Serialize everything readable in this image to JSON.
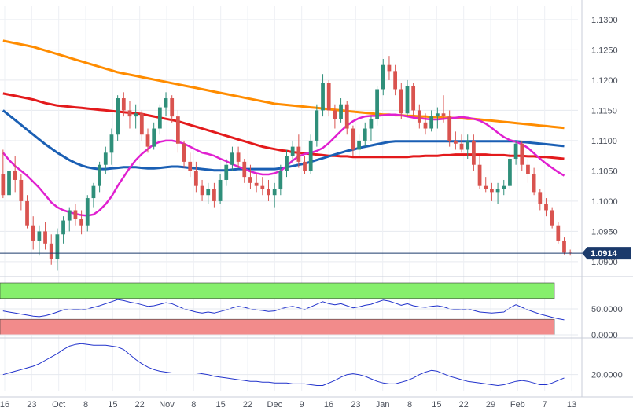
{
  "chart_data": [
    {
      "panel": "price",
      "type": "candlestick",
      "y_ticks": [
        "1.1300",
        "1.1250",
        "1.1200",
        "1.1150",
        "1.1100",
        "1.1050",
        "1.1000",
        "1.0950",
        "1.0900"
      ],
      "ylim": [
        1.0883,
        1.1322
      ],
      "last_price": {
        "value": 1.0914,
        "label": "1.0914",
        "color": "#1b3a6b"
      },
      "colors": {
        "up": "#2f8f7a",
        "down": "#d9534f",
        "sma20": "#e020d0",
        "sma50": "#1a5fb4",
        "sma100": "#e31a1c",
        "sma200": "#ff8c00",
        "grid": "#e6e9ef"
      },
      "candles": [
        [
          1.1045,
          1.1085,
          1.1005,
          1.101
        ],
        [
          1.101,
          1.106,
          1.0975,
          1.105
        ],
        [
          1.105,
          1.1075,
          1.1015,
          1.1035
        ],
        [
          1.1035,
          1.1045,
          1.0985,
          1.1
        ],
        [
          1.1,
          1.101,
          1.0955,
          1.096
        ],
        [
          1.096,
          1.0975,
          1.092,
          1.0935
        ],
        [
          1.0935,
          1.096,
          1.091,
          1.095
        ],
        [
          1.095,
          1.0965,
          1.092,
          1.093
        ],
        [
          1.093,
          1.0945,
          1.0895,
          1.0905
        ],
        [
          1.0905,
          1.0955,
          1.0885,
          1.0945
        ],
        [
          1.0945,
          1.0975,
          1.093,
          1.0968
        ],
        [
          1.0968,
          1.099,
          1.095,
          1.0985
        ],
        [
          1.0985,
          1.0995,
          1.096,
          1.097
        ],
        [
          1.097,
          1.0985,
          1.0945,
          1.096
        ],
        [
          1.096,
          1.101,
          1.095,
          1.1005
        ],
        [
          1.1005,
          1.103,
          1.099,
          1.1025
        ],
        [
          1.1025,
          1.1065,
          1.1015,
          1.106
        ],
        [
          1.106,
          1.109,
          1.1045,
          1.108
        ],
        [
          1.108,
          1.112,
          1.106,
          1.111
        ],
        [
          1.111,
          1.1175,
          1.11,
          1.117
        ],
        [
          1.117,
          1.118,
          1.114,
          1.115
        ],
        [
          1.115,
          1.1165,
          1.112,
          1.114
        ],
        [
          1.114,
          1.116,
          1.112,
          1.1145
        ],
        [
          1.1145,
          1.115,
          1.11,
          1.111
        ],
        [
          1.111,
          1.112,
          1.108,
          1.109
        ],
        [
          1.109,
          1.113,
          1.1085,
          1.112
        ],
        [
          1.112,
          1.116,
          1.111,
          1.1155
        ],
        [
          1.1155,
          1.118,
          1.114,
          1.117
        ],
        [
          1.117,
          1.1175,
          1.113,
          1.114
        ],
        [
          1.114,
          1.115,
          1.108,
          1.1095
        ],
        [
          1.1095,
          1.11,
          1.1055,
          1.1065
        ],
        [
          1.1065,
          1.108,
          1.104,
          1.105
        ],
        [
          1.105,
          1.1065,
          1.1015,
          1.1025
        ],
        [
          1.1025,
          1.1035,
          1.1,
          1.101
        ],
        [
          1.101,
          1.103,
          1.0995,
          1.102
        ],
        [
          1.102,
          1.103,
          1.099,
          1.1
        ],
        [
          1.1,
          1.1045,
          1.0995,
          1.1035
        ],
        [
          1.1035,
          1.107,
          1.1025,
          1.106
        ],
        [
          1.106,
          1.109,
          1.105,
          1.108
        ],
        [
          1.108,
          1.109,
          1.1055,
          1.1065
        ],
        [
          1.1065,
          1.107,
          1.103,
          1.104
        ],
        [
          1.104,
          1.106,
          1.102,
          1.103
        ],
        [
          1.103,
          1.1045,
          1.1015,
          1.1025
        ],
        [
          1.1025,
          1.104,
          1.101,
          1.102
        ],
        [
          1.102,
          1.1035,
          1.1,
          1.101
        ],
        [
          1.101,
          1.103,
          1.099,
          1.102
        ],
        [
          1.102,
          1.106,
          1.101,
          1.105
        ],
        [
          1.105,
          1.1085,
          1.104,
          1.1075
        ],
        [
          1.1075,
          1.11,
          1.1065,
          1.109
        ],
        [
          1.109,
          1.111,
          1.1055,
          1.1065
        ],
        [
          1.1065,
          1.1075,
          1.1045,
          1.105
        ],
        [
          1.105,
          1.111,
          1.1045,
          1.11
        ],
        [
          1.11,
          1.116,
          1.109,
          1.115
        ],
        [
          1.115,
          1.121,
          1.114,
          1.1195
        ],
        [
          1.1195,
          1.12,
          1.114,
          1.115
        ],
        [
          1.115,
          1.116,
          1.112,
          1.1135
        ],
        [
          1.1135,
          1.117,
          1.113,
          1.116
        ],
        [
          1.116,
          1.1165,
          1.111,
          1.112
        ],
        [
          1.112,
          1.1125,
          1.1075,
          1.1085
        ],
        [
          1.1085,
          1.111,
          1.1075,
          1.11
        ],
        [
          1.11,
          1.113,
          1.109,
          1.112
        ],
        [
          1.112,
          1.114,
          1.11,
          1.1135
        ],
        [
          1.1135,
          1.119,
          1.1125,
          1.1185
        ],
        [
          1.1185,
          1.1235,
          1.1175,
          1.1225
        ],
        [
          1.1225,
          1.124,
          1.12,
          1.1215
        ],
        [
          1.1215,
          1.1225,
          1.1175,
          1.1185
        ],
        [
          1.1185,
          1.1195,
          1.1135,
          1.1145
        ],
        [
          1.1145,
          1.12,
          1.114,
          1.119
        ],
        [
          1.119,
          1.1195,
          1.114,
          1.115
        ],
        [
          1.115,
          1.116,
          1.112,
          1.113
        ],
        [
          1.113,
          1.1145,
          1.111,
          1.112
        ],
        [
          1.112,
          1.115,
          1.1115,
          1.114
        ],
        [
          1.114,
          1.1155,
          1.112,
          1.1145
        ],
        [
          1.1145,
          1.1175,
          1.113,
          1.114
        ],
        [
          1.114,
          1.115,
          1.109,
          1.11
        ],
        [
          1.11,
          1.1115,
          1.1085,
          1.1095
        ],
        [
          1.1095,
          1.111,
          1.108,
          1.1085
        ],
        [
          1.1085,
          1.111,
          1.107,
          1.11
        ],
        [
          1.11,
          1.111,
          1.105,
          1.106
        ],
        [
          1.106,
          1.1075,
          1.102,
          1.1025
        ],
        [
          1.1025,
          1.104,
          1.1015,
          1.102
        ],
        [
          1.102,
          1.103,
          1.1,
          1.1015
        ],
        [
          1.1015,
          1.103,
          1.0995,
          1.102
        ],
        [
          1.102,
          1.1035,
          1.101,
          1.1025
        ],
        [
          1.1025,
          1.108,
          1.102,
          1.107
        ],
        [
          1.107,
          1.11,
          1.106,
          1.1095
        ],
        [
          1.1095,
          1.11,
          1.105,
          1.106
        ],
        [
          1.106,
          1.107,
          1.103,
          1.1045
        ],
        [
          1.1045,
          1.1055,
          1.101,
          1.1015
        ],
        [
          1.1015,
          1.102,
          1.0985,
          1.0995
        ],
        [
          1.0995,
          1.1005,
          1.0975,
          1.0985
        ],
        [
          1.0985,
          1.099,
          1.0955,
          1.096
        ],
        [
          1.096,
          1.0965,
          1.093,
          1.0935
        ],
        [
          1.0935,
          1.094,
          1.0912,
          1.0915
        ],
        [
          1.0915,
          1.092,
          1.091,
          1.0914
        ]
      ],
      "sma20": [
        1.108,
        1.1068,
        1.1058,
        1.105,
        1.1042,
        1.1032,
        1.1022,
        1.101,
        1.0998,
        1.099,
        1.0985,
        1.0982,
        1.0979,
        1.0977,
        1.0976,
        1.0978,
        1.0985,
        1.0995,
        1.1008,
        1.1025,
        1.104,
        1.1055,
        1.1068,
        1.1078,
        1.1086,
        1.1094,
        1.1098,
        1.11,
        1.11,
        1.1098,
        1.1095,
        1.109,
        1.1085,
        1.108,
        1.1078,
        1.1075,
        1.107,
        1.1066,
        1.1061,
        1.1057,
        1.1053,
        1.1049,
        1.1046,
        1.1044,
        1.1044,
        1.1046,
        1.105,
        1.1058,
        1.1067,
        1.1074,
        1.1078,
        1.108,
        1.1083,
        1.1088,
        1.1096,
        1.1106,
        1.1116,
        1.1125,
        1.1132,
        1.1137,
        1.114,
        1.1141,
        1.1141,
        1.1142,
        1.1143,
        1.1143,
        1.1142,
        1.114,
        1.1138,
        1.1137,
        1.1136,
        1.1135,
        1.1135,
        1.1136,
        1.1137,
        1.1138,
        1.1139,
        1.1138,
        1.1136,
        1.1133,
        1.1128,
        1.1121,
        1.1113,
        1.1106,
        1.1101,
        1.1098,
        1.1094,
        1.1088,
        1.1079,
        1.107,
        1.1062,
        1.1055,
        1.1048,
        1.1042
      ],
      "sma50": [
        1.115,
        1.1142,
        1.1134,
        1.1126,
        1.1118,
        1.111,
        1.1102,
        1.1094,
        1.1087,
        1.108,
        1.1074,
        1.1068,
        1.1063,
        1.1059,
        1.1056,
        1.1054,
        1.1053,
        1.1053,
        1.1054,
        1.1055,
        1.1056,
        1.1056,
        1.1056,
        1.1055,
        1.1054,
        1.1054,
        1.1055,
        1.1056,
        1.1057,
        1.1057,
        1.1056,
        1.1055,
        1.1054,
        1.1053,
        1.1052,
        1.1051,
        1.1051,
        1.1051,
        1.1052,
        1.1053,
        1.1053,
        1.1053,
        1.1053,
        1.1053,
        1.1053,
        1.1053,
        1.1054,
        1.1056,
        1.1058,
        1.106,
        1.1062,
        1.1065,
        1.1068,
        1.1071,
        1.1074,
        1.1077,
        1.108,
        1.1083,
        1.1085,
        1.1088,
        1.109,
        1.1092,
        1.1094,
        1.1096,
        1.1098,
        1.1099,
        1.1099,
        1.1099,
        1.1099,
        1.1099,
        1.1099,
        1.1099,
        1.1099,
        1.1099,
        1.1099,
        1.1099,
        1.1099,
        1.1099,
        1.1099,
        1.1099,
        1.1099,
        1.1099,
        1.1099,
        1.1099,
        1.1099,
        1.1099,
        1.1098,
        1.1097,
        1.1096,
        1.1095,
        1.1094,
        1.1093,
        1.1092,
        1.1091
      ],
      "sma100": [
        1.1178,
        1.1176,
        1.1174,
        1.1172,
        1.117,
        1.1168,
        1.1165,
        1.1162,
        1.116,
        1.1158,
        1.1157,
        1.1156,
        1.1155,
        1.1154,
        1.1153,
        1.1152,
        1.1151,
        1.115,
        1.1149,
        1.1148,
        1.1147,
        1.1146,
        1.1145,
        1.1144,
        1.1142,
        1.114,
        1.1138,
        1.1136,
        1.1134,
        1.1132,
        1.1129,
        1.1126,
        1.1123,
        1.112,
        1.1117,
        1.1114,
        1.1111,
        1.1108,
        1.1105,
        1.1102,
        1.1099,
        1.1096,
        1.1093,
        1.109,
        1.1088,
        1.1086,
        1.1084,
        1.1083,
        1.1081,
        1.108,
        1.1079,
        1.1078,
        1.1077,
        1.1076,
        1.1075,
        1.1075,
        1.1074,
        1.1074,
        1.1073,
        1.1073,
        1.1073,
        1.1073,
        1.1073,
        1.1073,
        1.1073,
        1.1073,
        1.1073,
        1.1073,
        1.1074,
        1.1074,
        1.1075,
        1.1075,
        1.1075,
        1.1076,
        1.1076,
        1.1077,
        1.1077,
        1.1077,
        1.1077,
        1.1077,
        1.1077,
        1.1076,
        1.1076,
        1.1076,
        1.1075,
        1.1075,
        1.1075,
        1.1074,
        1.1074,
        1.1073,
        1.1073,
        1.1072,
        1.1071,
        1.107
      ],
      "sma200": [
        1.1265,
        1.1263,
        1.1261,
        1.1259,
        1.1257,
        1.1255,
        1.1252,
        1.1249,
        1.1246,
        1.1243,
        1.124,
        1.1237,
        1.1234,
        1.1231,
        1.1228,
        1.1225,
        1.1222,
        1.1219,
        1.1216,
        1.1213,
        1.1211,
        1.1209,
        1.1207,
        1.1205,
        1.1203,
        1.1201,
        1.1199,
        1.1197,
        1.1195,
        1.1193,
        1.1191,
        1.1189,
        1.1187,
        1.1185,
        1.1183,
        1.1181,
        1.1179,
        1.1177,
        1.1175,
        1.1173,
        1.1171,
        1.1169,
        1.1167,
        1.1165,
        1.1163,
        1.1161,
        1.116,
        1.1159,
        1.1158,
        1.1157,
        1.1156,
        1.1155,
        1.1154,
        1.1153,
        1.1152,
        1.1151,
        1.115,
        1.1149,
        1.1148,
        1.1147,
        1.1146,
        1.1145,
        1.1144,
        1.1143,
        1.1143,
        1.1142,
        1.1142,
        1.1141,
        1.1141,
        1.114,
        1.114,
        1.1139,
        1.1139,
        1.1138,
        1.1138,
        1.1137,
        1.1137,
        1.1136,
        1.1136,
        1.1135,
        1.1134,
        1.1133,
        1.1132,
        1.1131,
        1.113,
        1.1129,
        1.1128,
        1.1127,
        1.1126,
        1.1125,
        1.1124,
        1.1123,
        1.1122,
        1.1121
      ]
    },
    {
      "panel": "rsi",
      "type": "line",
      "y_ticks": [
        "50.0000",
        "0.0000"
      ],
      "ylim": [
        0,
        100
      ],
      "overbought_band": [
        70,
        100
      ],
      "oversold_band": [
        0,
        30
      ],
      "colors": {
        "line": "#2233cc",
        "overbought": "#86ef6c",
        "oversold": "#f28b8b"
      },
      "values": [
        46,
        44,
        42,
        40,
        38,
        36,
        35,
        37,
        40,
        44,
        48,
        50,
        49,
        48,
        50,
        53,
        56,
        60,
        64,
        68,
        66,
        63,
        61,
        58,
        55,
        56,
        59,
        62,
        60,
        55,
        50,
        47,
        44,
        42,
        44,
        42,
        45,
        48,
        52,
        55,
        53,
        50,
        48,
        47,
        45,
        46,
        50,
        53,
        55,
        52,
        49,
        54,
        59,
        64,
        60,
        58,
        60,
        56,
        52,
        54,
        57,
        59,
        63,
        67,
        65,
        61,
        57,
        60,
        56,
        54,
        53,
        55,
        56,
        54,
        50,
        49,
        48,
        50,
        47,
        44,
        43,
        42,
        43,
        44,
        52,
        58,
        53,
        48,
        44,
        40,
        37,
        34,
        31,
        29
      ]
    },
    {
      "panel": "oscillator",
      "type": "line",
      "y_ticks": [
        "20.0000"
      ],
      "ylim": [
        0,
        60
      ],
      "colors": {
        "line": "#2233cc"
      },
      "values": [
        20,
        22,
        24,
        26,
        28,
        30,
        33,
        37,
        41,
        45,
        50,
        54,
        56,
        57,
        56,
        55,
        55,
        55,
        54,
        53,
        50,
        44,
        38,
        33,
        29,
        26,
        24,
        23,
        22,
        22,
        22,
        22,
        22,
        21,
        20,
        18,
        17,
        16,
        15,
        14,
        13,
        12,
        12,
        11,
        11,
        10,
        10,
        10,
        9,
        9,
        9,
        8,
        7,
        7,
        10,
        13,
        17,
        20,
        21,
        20,
        18,
        15,
        12,
        10,
        9,
        9,
        11,
        13,
        16,
        20,
        23,
        25,
        24,
        21,
        18,
        16,
        14,
        12,
        11,
        10,
        9,
        8,
        7,
        8,
        10,
        12,
        13,
        12,
        10,
        8,
        8,
        10,
        13,
        16
      ]
    }
  ],
  "x_axis": {
    "labels": [
      "16",
      "23",
      "Oct",
      "8",
      "15",
      "22",
      "Nov",
      "8",
      "15",
      "22",
      "Dec",
      "9",
      "16",
      "23",
      "Jan",
      "8",
      "15",
      "22",
      "29",
      "Feb",
      "7",
      "13"
    ]
  }
}
